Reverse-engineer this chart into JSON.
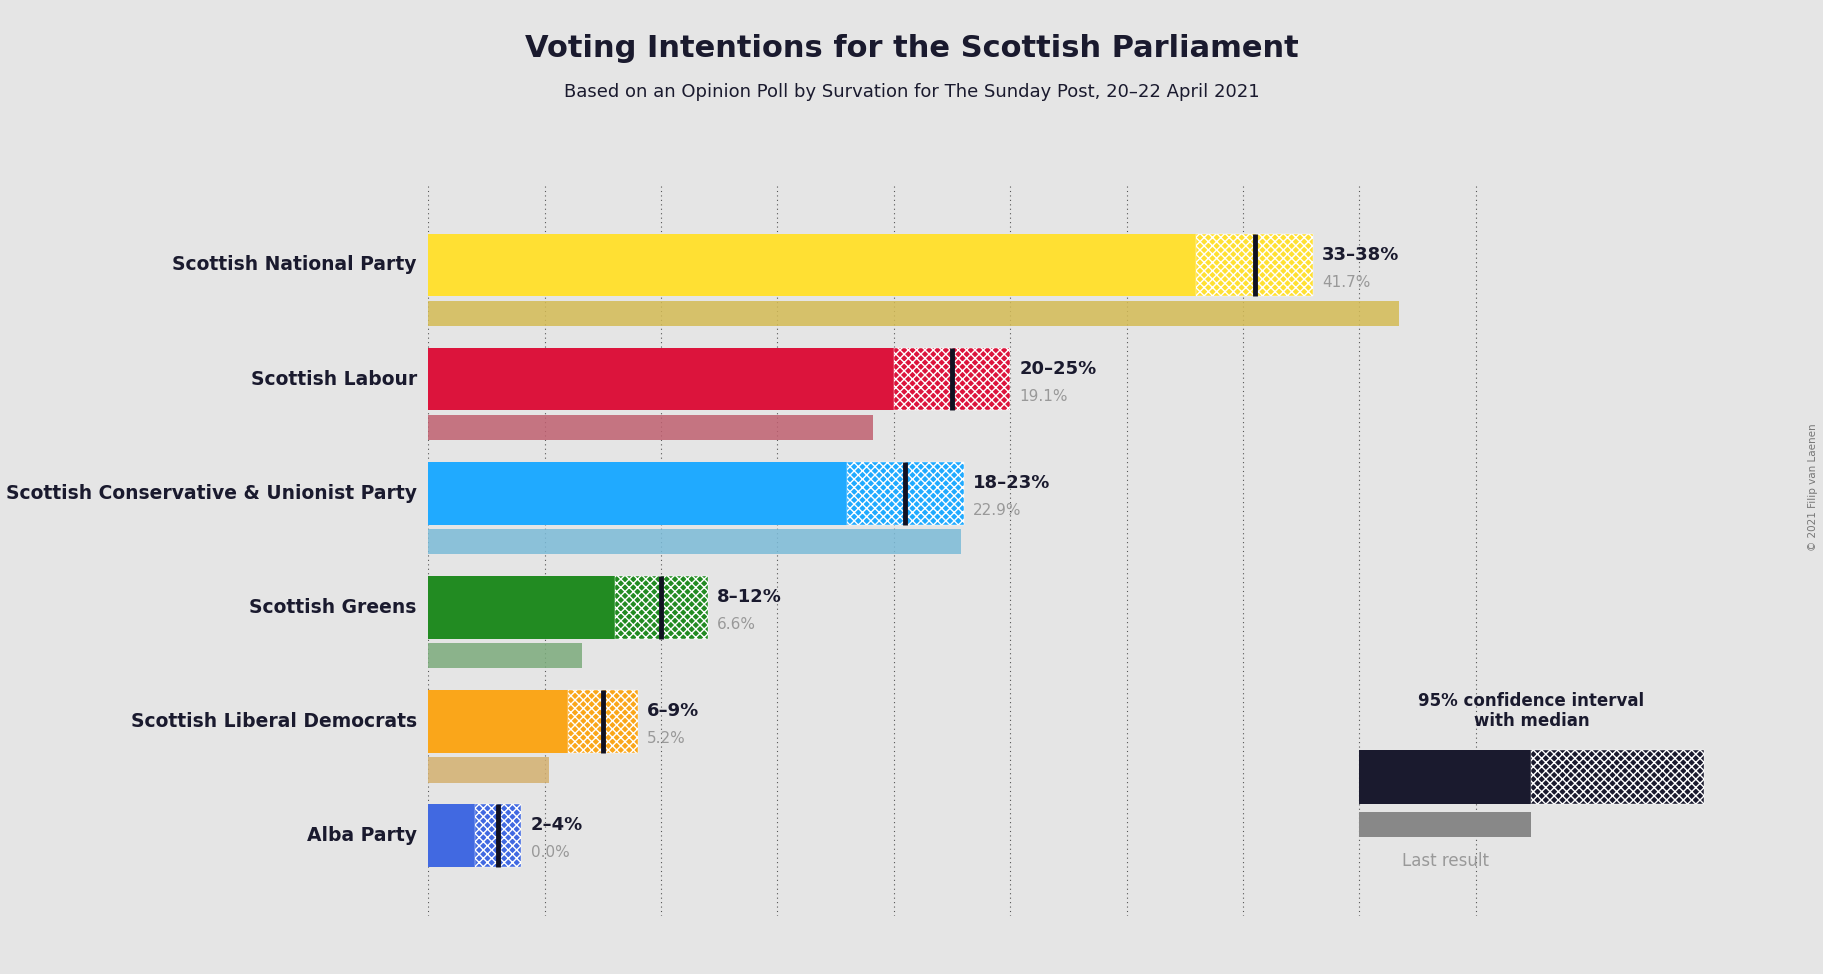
{
  "title": "Voting Intentions for the Scottish Parliament",
  "subtitle": "Based on an Opinion Poll by Survation for The Sunday Post, 20–22 April 2021",
  "copyright": "© 2021 Filip van Laenen",
  "background_color": "#e5e5e5",
  "parties": [
    {
      "name": "Scottish National Party",
      "ci_low": 33,
      "ci_high": 38,
      "median": 35.5,
      "last_result": 41.7,
      "color": "#FFE033",
      "last_color": "#D4BB55",
      "label": "33–38%",
      "last_label": "41.7%"
    },
    {
      "name": "Scottish Labour",
      "ci_low": 20,
      "ci_high": 25,
      "median": 22.5,
      "last_result": 19.1,
      "color": "#DC143C",
      "last_color": "#C06070",
      "label": "20–25%",
      "last_label": "19.1%"
    },
    {
      "name": "Scottish Conservative & Unionist Party",
      "ci_low": 18,
      "ci_high": 23,
      "median": 20.5,
      "last_result": 22.9,
      "color": "#20AAFF",
      "last_color": "#7BBBD8",
      "label": "18–23%",
      "last_label": "22.9%"
    },
    {
      "name": "Scottish Greens",
      "ci_low": 8,
      "ci_high": 12,
      "median": 10,
      "last_result": 6.6,
      "color": "#228B22",
      "last_color": "#7BAB7B",
      "label": "8–12%",
      "last_label": "6.6%"
    },
    {
      "name": "Scottish Liberal Democrats",
      "ci_low": 6,
      "ci_high": 9,
      "median": 7.5,
      "last_result": 5.2,
      "color": "#FAA61A",
      "last_color": "#D4B070",
      "label": "6–9%",
      "last_label": "5.2%"
    },
    {
      "name": "Alba Party",
      "ci_low": 2,
      "ci_high": 4,
      "median": 3,
      "last_result": 0.0,
      "color": "#4169E1",
      "last_color": "#8090C0",
      "label": "2–4%",
      "last_label": "0.0%"
    }
  ],
  "xmax": 47,
  "ci_bar_height": 0.55,
  "last_bar_height": 0.22,
  "text_dark": "#1a1a2e",
  "text_gray": "#999999",
  "grid_color": "#555555",
  "legend_color": "#1a1a2e",
  "legend_last_color": "#888888"
}
